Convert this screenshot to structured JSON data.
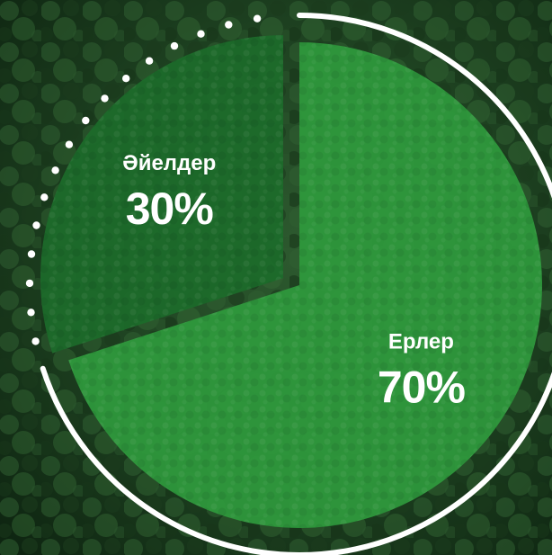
{
  "chart_data": {
    "type": "pie",
    "slices": [
      {
        "label": "Ерлер",
        "value": 70,
        "value_label": "70%",
        "color": "#2f9a3d"
      },
      {
        "label": "Әйелдер",
        "value": 30,
        "value_label": "30%",
        "color": "#1c6b2a"
      }
    ],
    "exploded_slice": "Әйелдер",
    "legend": "none",
    "decoration": {
      "ring_color": "#ffffff",
      "dotted_arc_color": "#ffffff"
    }
  }
}
